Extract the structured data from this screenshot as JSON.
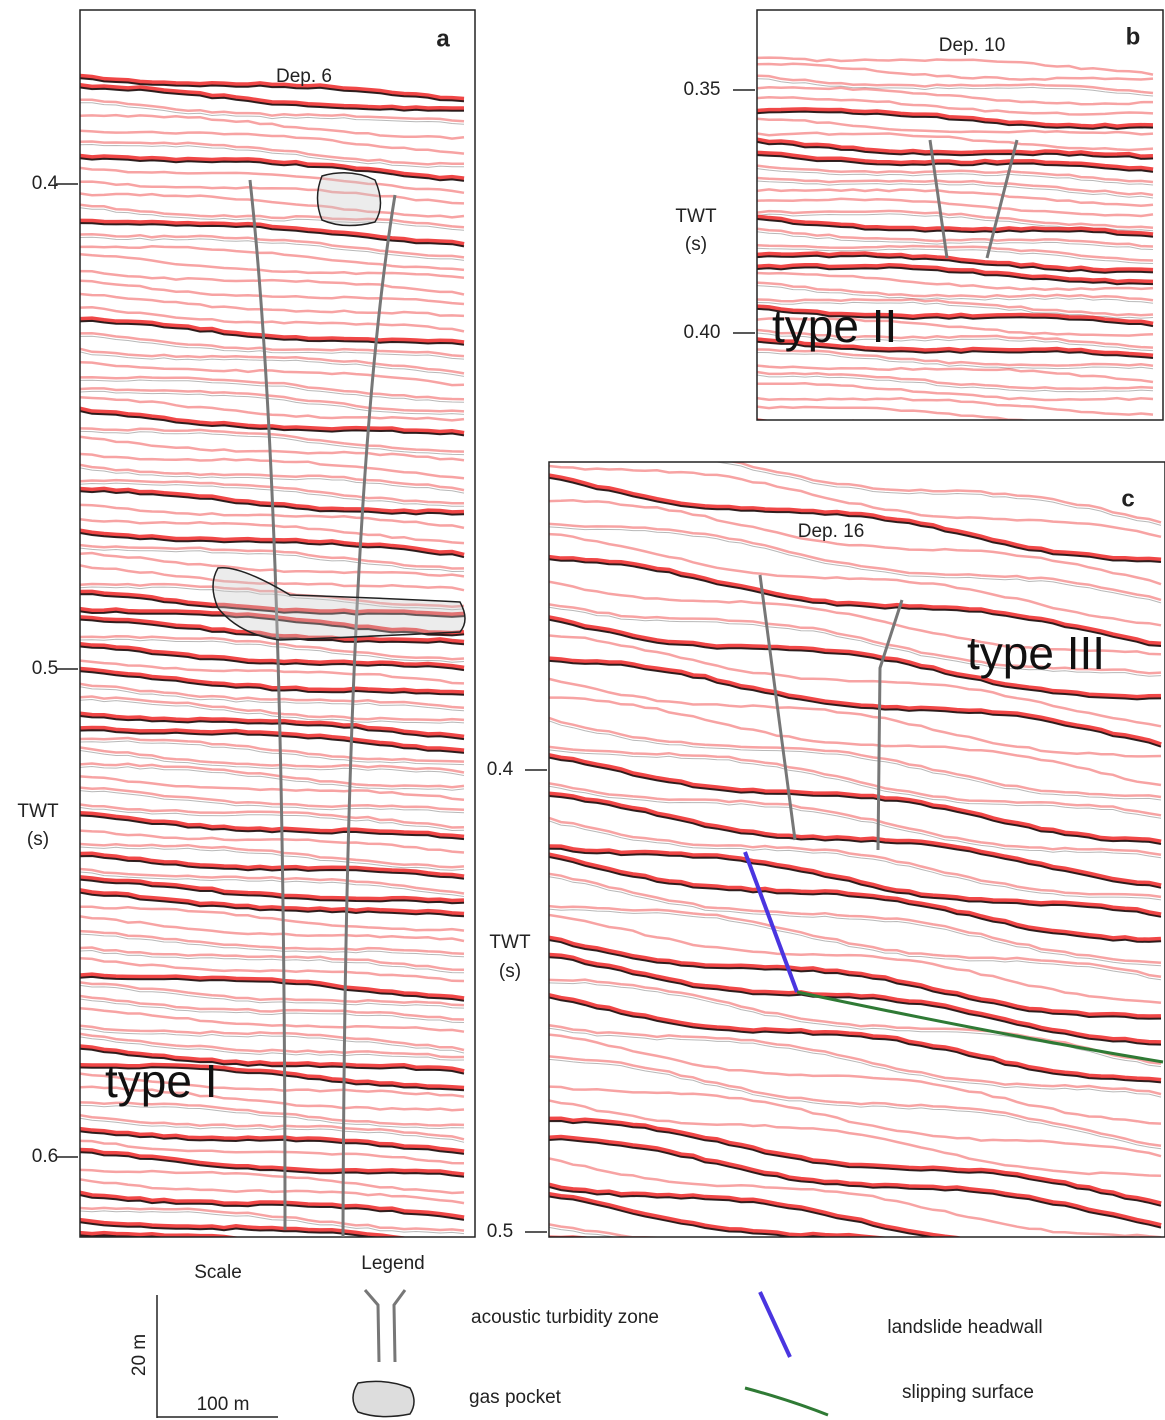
{
  "panels": [
    {
      "letter": "a",
      "title": "Dep. 6",
      "type_label": "type I",
      "axis_label": [
        "TWT",
        "(s)"
      ],
      "ticks": [
        "0.4",
        "0.5",
        "0.6"
      ]
    },
    {
      "letter": "b",
      "title": "Dep. 10",
      "type_label": "type II",
      "axis_label": [
        "TWT",
        "(s)"
      ],
      "ticks": [
        "0.35",
        "0.40"
      ]
    },
    {
      "letter": "c",
      "title": "Dep. 16",
      "type_label": "type III",
      "axis_label": [
        "TWT",
        "(s)"
      ],
      "ticks": [
        "0.4",
        "0.5"
      ]
    }
  ],
  "scale": {
    "title": "Scale",
    "vertical": "20 m",
    "horizontal": "100 m"
  },
  "legend": {
    "title": "Legend",
    "items": [
      "acoustic turbidity zone",
      "gas pocket",
      "landslide headwall",
      "slipping surface"
    ]
  }
}
